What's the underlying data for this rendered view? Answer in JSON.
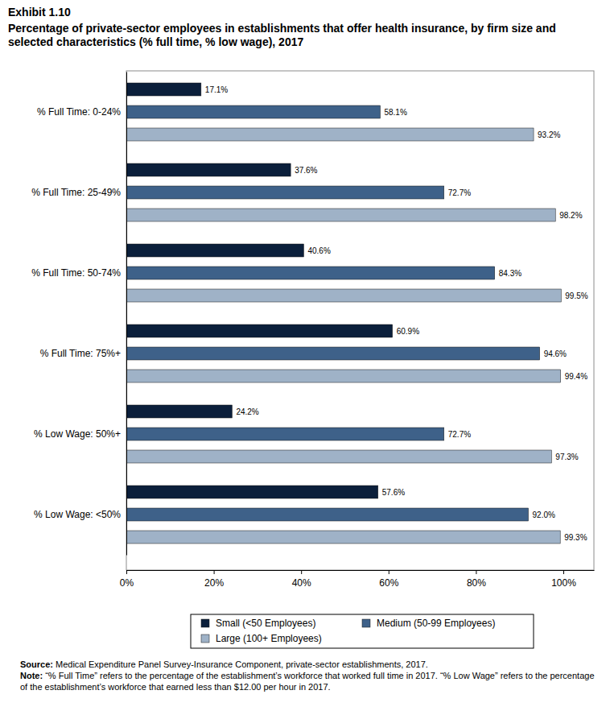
{
  "chart_data": {
    "type": "bar",
    "orientation": "horizontal",
    "title": "Exhibit 1.10",
    "subtitle": "Percentage of private-sector employees in establishments that offer health insurance, by firm size and selected characteristics (% full time, % low wage), 2017",
    "categories": [
      "% Full Time: 0-24%",
      "% Full Time: 25-49%",
      "% Full Time: 50-74%",
      "% Full Time: 75%+",
      "% Low Wage: 50%+",
      "% Low Wage: <50%"
    ],
    "series": [
      {
        "name": "Small (<50 Employees)",
        "color": "#0b1f3b",
        "values": [
          17.1,
          37.6,
          40.6,
          60.9,
          24.2,
          57.6
        ],
        "value_labels": [
          "17.1%",
          "37.6%",
          "40.6%",
          "60.9%",
          "24.2%",
          "57.6%"
        ]
      },
      {
        "name": "Medium (50-99 Employees)",
        "color": "#3e6189",
        "values": [
          58.1,
          72.7,
          84.3,
          94.6,
          72.7,
          92.0
        ],
        "value_labels": [
          "58.1%",
          "72.7%",
          "84.3%",
          "94.6%",
          "72.7%",
          "92.0%"
        ]
      },
      {
        "name": "Large (100+ Employees)",
        "color": "#9fb2c7",
        "values": [
          93.2,
          98.2,
          99.5,
          99.4,
          97.3,
          99.3
        ],
        "value_labels": [
          "93.2%",
          "98.2%",
          "99.5%",
          "99.4%",
          "97.3%",
          "99.3%"
        ]
      }
    ],
    "xlim": [
      0,
      107
    ],
    "xticks": [
      {
        "value": 0,
        "label": "0%"
      },
      {
        "value": 20,
        "label": "20%"
      },
      {
        "value": 40,
        "label": "40%"
      },
      {
        "value": 60,
        "label": "60%"
      },
      {
        "value": 80,
        "label": "80%"
      },
      {
        "value": 100,
        "label": "100%"
      }
    ],
    "grid": false,
    "data_labels": true,
    "legend": "bottom",
    "annotations": [
      {
        "label": "Source:",
        "text": "Medical Expenditure Panel Survey-Insurance Component, private-sector establishments, 2017."
      },
      {
        "label": "Note:",
        "text": "“% Full Time” refers to the percentage of the establishment’s workforce that worked full time in 2017. “% Low Wage” refers to the percentage of the establishment’s workforce that earned less than $12.00 per hour in 2017."
      }
    ]
  }
}
